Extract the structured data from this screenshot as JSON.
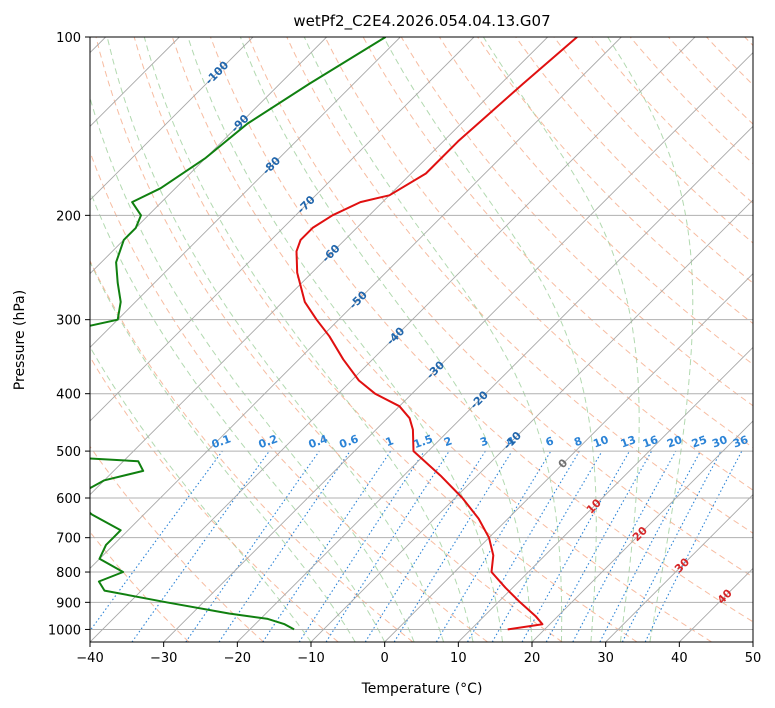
{
  "chart_data": {
    "type": "line",
    "title": "wetPf2_C2E4.2026.054.04.13.G07",
    "xlabel": "Temperature (°C)",
    "ylabel": "Pressure (hPa)",
    "xlim": [
      -40,
      50
    ],
    "ylim": [
      1050,
      100
    ],
    "y_scale": "log",
    "x_ticks": [
      -40,
      -30,
      -20,
      -10,
      0,
      10,
      20,
      30,
      40,
      50
    ],
    "y_ticks": [
      100,
      200,
      300,
      400,
      500,
      600,
      700,
      800,
      900,
      1000
    ],
    "grid": true,
    "skew": 1.0,
    "series": [
      {
        "color": "#e01010",
        "p": [
          100,
          120,
          150,
          170,
          185,
          190,
          200,
          210,
          220,
          230,
          250,
          280,
          300,
          320,
          350,
          380,
          400,
          420,
          440,
          460,
          500,
          550,
          600,
          650,
          700,
          750,
          800,
          850,
          900,
          950,
          980,
          1000
        ],
        "t": [
          -56,
          -57,
          -58,
          -58,
          -60,
          -63,
          -65,
          -66,
          -66,
          -65,
          -62,
          -57,
          -53,
          -49,
          -44,
          -39,
          -35,
          -30,
          -27,
          -25,
          -22,
          -15,
          -9,
          -4,
          0,
          3,
          5,
          9,
          13,
          17,
          19,
          15
        ]
      },
      {
        "color": "#108010",
        "p": [
          100,
          120,
          140,
          160,
          180,
          190,
          200,
          210,
          220,
          240,
          260,
          280,
          300,
          320,
          340,
          350,
          360,
          380,
          400,
          440,
          480,
          500,
          520,
          540,
          560,
          600,
          640,
          680,
          700,
          720,
          760,
          800,
          830,
          860,
          900,
          940,
          960,
          980,
          1000
        ],
        "t": [
          -82,
          -86,
          -89,
          -90,
          -92,
          -94,
          -91,
          -90,
          -90,
          -88,
          -85,
          -82,
          -80,
          -88,
          -95,
          -90,
          -85,
          -90,
          -92,
          -90,
          -86,
          -84,
          -58,
          -56,
          -60,
          -62,
          -57,
          -51,
          -51,
          -51,
          -50,
          -45,
          -47,
          -45,
          -35,
          -25,
          -19,
          -16,
          -14
        ]
      }
    ],
    "dry_adiabats_theta_c": [
      -30,
      -20,
      -10,
      0,
      10,
      20,
      30,
      40,
      50,
      60,
      70,
      80,
      90,
      100,
      110,
      120,
      130,
      140,
      150,
      160,
      170,
      180,
      190,
      200,
      210
    ],
    "moist_adiabats_start_c": [
      -10,
      -4,
      0,
      4,
      8,
      12,
      16,
      20,
      24,
      28,
      32,
      36
    ],
    "mixing_ratios": [
      "0.1",
      "0.2",
      "0.4",
      "0.6",
      "1",
      "1.5",
      "2",
      "3",
      "4",
      "6",
      "8",
      "10",
      "13",
      "16",
      "20",
      "25",
      "30",
      "36"
    ],
    "isotherm_labels_blue": [
      "-100",
      "-90",
      "-80",
      "-70",
      "-60",
      "-50",
      "-40",
      "-30",
      "-20",
      "-10"
    ],
    "isotherm_labels_grey": [
      "0"
    ],
    "isotherm_labels_red": [
      "10",
      "20",
      "30",
      "40"
    ]
  }
}
